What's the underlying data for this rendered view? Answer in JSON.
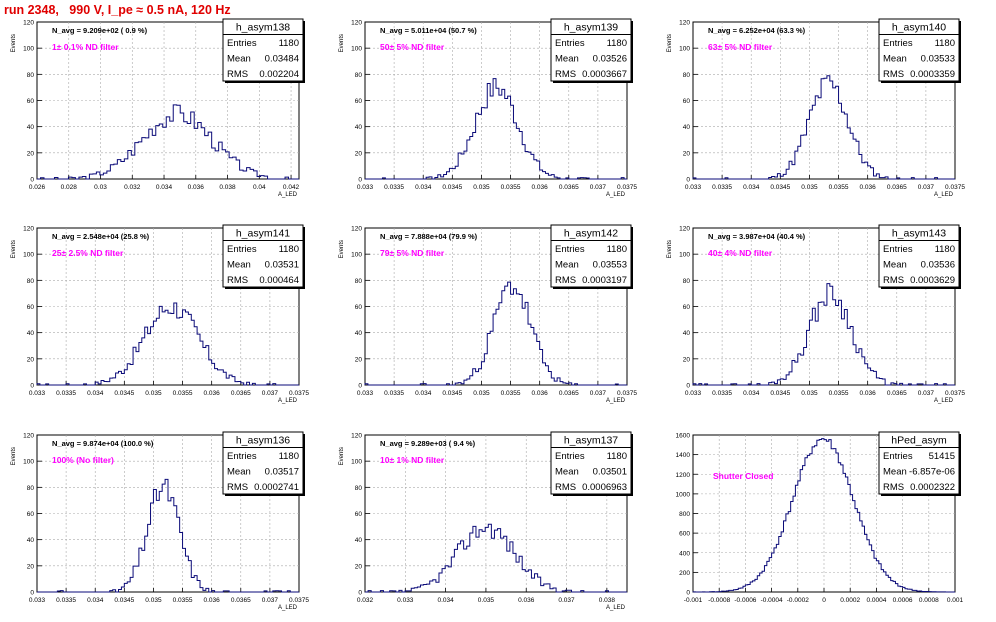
{
  "page": {
    "title": "run 2348,   990 V, I_pe ≈ 0.5 nA, 120 Hz"
  },
  "colors": {
    "hist": "#0a0a78",
    "annotation": "#ff00ff",
    "title": "#e00000",
    "grid": "#aaaaaa"
  },
  "chart_data": [
    {
      "type": "bar",
      "stats_title": "h_asym138",
      "stats": [
        [
          "Entries",
          "1180"
        ],
        [
          "Mean",
          "0.03484"
        ],
        [
          "RMS",
          "0.002204"
        ]
      ],
      "navg": "N_avg = 9.209e+02 ( 0.9 %)",
      "note": "1± 0.1% ND filter",
      "ylabel": "Events",
      "xlabel": "A_LED",
      "xlim": [
        0.026,
        0.0425
      ],
      "ylim": [
        0,
        120
      ],
      "xticks": [
        0.026,
        0.028,
        0.03,
        0.032,
        0.034,
        0.036,
        0.038,
        0.04,
        0.042
      ],
      "xticklabels": [
        "0.026",
        "0.028",
        "0.03",
        "0.032",
        "0.034",
        "0.036",
        "0.038",
        "0.04",
        "0.042"
      ],
      "yticks": [
        0,
        20,
        40,
        60,
        80,
        100,
        120
      ],
      "mean": 0.03484,
      "sigma": 0.0022,
      "peak": 50,
      "bins": 75,
      "seed": 3
    },
    {
      "type": "bar",
      "stats_title": "h_asym139",
      "stats": [
        [
          "Entries",
          "1180"
        ],
        [
          "Mean",
          "0.03526"
        ],
        [
          "RMS",
          "0.0003667"
        ]
      ],
      "navg": "N_avg = 5.011e+04 (50.7 %)",
      "note": "50± 5% ND filter",
      "ylabel": "Events",
      "xlabel": "A_LED",
      "xlim": [
        0.033,
        0.0375
      ],
      "ylim": [
        0,
        120
      ],
      "xticks": [
        0.033,
        0.0335,
        0.034,
        0.0345,
        0.035,
        0.0355,
        0.036,
        0.0365,
        0.037,
        0.0375
      ],
      "xticklabels": [
        "0.033",
        "0.0335",
        "0.034",
        "0.0345",
        "0.035",
        "0.0355",
        "0.036",
        "0.0365",
        "0.037",
        "0.0375"
      ],
      "yticks": [
        0,
        20,
        40,
        60,
        80,
        100,
        120
      ],
      "mean": 0.03526,
      "sigma": 0.000367,
      "peak": 70,
      "bins": 90,
      "seed": 7
    },
    {
      "type": "bar",
      "stats_title": "h_asym140",
      "stats": [
        [
          "Entries",
          "1180"
        ],
        [
          "Mean",
          "0.03533"
        ],
        [
          "RMS",
          "0.0003359"
        ]
      ],
      "navg": "N_avg = 6.252e+04 (63.3 %)",
      "note": "63± 5% ND filter",
      "ylabel": "Events",
      "xlabel": "A_LED",
      "xlim": [
        0.033,
        0.0375
      ],
      "ylim": [
        0,
        120
      ],
      "xticks": [
        0.033,
        0.0335,
        0.034,
        0.0345,
        0.035,
        0.0355,
        0.036,
        0.0365,
        0.037,
        0.0375
      ],
      "xticklabels": [
        "0.033",
        "0.0335",
        "0.034",
        "0.0345",
        "0.035",
        "0.0355",
        "0.036",
        "0.0365",
        "0.037",
        "0.0375"
      ],
      "yticks": [
        0,
        20,
        40,
        60,
        80,
        100,
        120
      ],
      "mean": 0.03533,
      "sigma": 0.000336,
      "peak": 73,
      "bins": 90,
      "seed": 11
    },
    {
      "type": "bar",
      "stats_title": "h_asym141",
      "stats": [
        [
          "Entries",
          "1180"
        ],
        [
          "Mean",
          "0.03531"
        ],
        [
          "RMS",
          "0.000464"
        ]
      ],
      "navg": "N_avg = 2.548e+04 (25.8 %)",
      "note": "25± 2.5% ND filter",
      "ylabel": "Events",
      "xlabel": "A_LED",
      "xlim": [
        0.033,
        0.0375
      ],
      "ylim": [
        0,
        120
      ],
      "xticks": [
        0.033,
        0.0335,
        0.034,
        0.0345,
        0.035,
        0.0355,
        0.036,
        0.0365,
        0.037,
        0.0375
      ],
      "xticklabels": [
        "0.033",
        "0.0335",
        "0.034",
        "0.0345",
        "0.035",
        "0.0355",
        "0.036",
        "0.0365",
        "0.037",
        "0.0375"
      ],
      "yticks": [
        0,
        20,
        40,
        60,
        80,
        100,
        120
      ],
      "mean": 0.03531,
      "sigma": 0.000464,
      "peak": 60,
      "bins": 90,
      "seed": 17
    },
    {
      "type": "bar",
      "stats_title": "h_asym142",
      "stats": [
        [
          "Entries",
          "1180"
        ],
        [
          "Mean",
          "0.03553"
        ],
        [
          "RMS",
          "0.0003197"
        ]
      ],
      "navg": "N_avg = 7.888e+04 (79.9 %)",
      "note": "79± 5% ND filter",
      "ylabel": "Events",
      "xlabel": "A_LED",
      "xlim": [
        0.033,
        0.0375
      ],
      "ylim": [
        0,
        120
      ],
      "xticks": [
        0.033,
        0.0335,
        0.034,
        0.0345,
        0.035,
        0.0355,
        0.036,
        0.0365,
        0.037,
        0.0375
      ],
      "xticklabels": [
        "0.033",
        "0.0335",
        "0.034",
        "0.0345",
        "0.035",
        "0.0355",
        "0.036",
        "0.0365",
        "0.037",
        "0.0375"
      ],
      "yticks": [
        0,
        20,
        40,
        60,
        80,
        100,
        120
      ],
      "mean": 0.03553,
      "sigma": 0.00032,
      "peak": 76,
      "bins": 90,
      "seed": 23
    },
    {
      "type": "bar",
      "stats_title": "h_asym143",
      "stats": [
        [
          "Entries",
          "1180"
        ],
        [
          "Mean",
          "0.03536"
        ],
        [
          "RMS",
          "0.0003629"
        ]
      ],
      "navg": "N_avg = 3.987e+04 (40.4 %)",
      "note": "40± 4% ND filter",
      "ylabel": "Events",
      "xlabel": "A_LED",
      "xlim": [
        0.033,
        0.0375
      ],
      "ylim": [
        0,
        120
      ],
      "xticks": [
        0.033,
        0.0335,
        0.034,
        0.0345,
        0.035,
        0.0355,
        0.036,
        0.0365,
        0.037,
        0.0375
      ],
      "xticklabels": [
        "0.033",
        "0.0335",
        "0.034",
        "0.0345",
        "0.035",
        "0.0355",
        "0.036",
        "0.0365",
        "0.037",
        "0.0375"
      ],
      "yticks": [
        0,
        20,
        40,
        60,
        80,
        100,
        120
      ],
      "mean": 0.03536,
      "sigma": 0.000363,
      "peak": 70,
      "bins": 90,
      "seed": 29
    },
    {
      "type": "bar",
      "stats_title": "h_asym136",
      "stats": [
        [
          "Entries",
          "1180"
        ],
        [
          "Mean",
          "0.03517"
        ],
        [
          "RMS",
          "0.0002741"
        ]
      ],
      "navg": "N_avg = 9.874e+04 (100.0 %)",
      "note": "100% (No filter)",
      "ylabel": "Events",
      "xlabel": "A_LED",
      "xlim": [
        0.033,
        0.0375
      ],
      "ylim": [
        0,
        120
      ],
      "xticks": [
        0.033,
        0.0335,
        0.034,
        0.0345,
        0.035,
        0.0355,
        0.036,
        0.0365,
        0.037,
        0.0375
      ],
      "xticklabels": [
        "0.033",
        "0.0335",
        "0.034",
        "0.0345",
        "0.035",
        "0.0355",
        "0.036",
        "0.0365",
        "0.037",
        "0.0375"
      ],
      "yticks": [
        0,
        20,
        40,
        60,
        80,
        100,
        120
      ],
      "mean": 0.03517,
      "sigma": 0.000274,
      "peak": 80,
      "bins": 90,
      "seed": 31
    },
    {
      "type": "bar",
      "stats_title": "h_asym137",
      "stats": [
        [
          "Entries",
          "1180"
        ],
        [
          "Mean",
          "0.03501"
        ],
        [
          "RMS",
          "0.0006963"
        ]
      ],
      "navg": "N_avg = 9.289e+03 ( 9.4 %)",
      "note": "10± 1% ND filter",
      "ylabel": "Events",
      "xlabel": "A_LED",
      "xlim": [
        0.032,
        0.0385
      ],
      "ylim": [
        0,
        120
      ],
      "xticks": [
        0.032,
        0.033,
        0.034,
        0.035,
        0.036,
        0.037,
        0.038
      ],
      "xticklabels": [
        "0.032",
        "0.033",
        "0.034",
        "0.035",
        "0.036",
        "0.037",
        "0.038"
      ],
      "yticks": [
        0,
        20,
        40,
        60,
        80,
        100,
        120
      ],
      "mean": 0.03501,
      "sigma": 0.000696,
      "peak": 50,
      "bins": 85,
      "seed": 37
    },
    {
      "type": "bar",
      "stats_title": "hPed_asym",
      "stats": [
        [
          "Entries",
          "51415"
        ],
        [
          "Mean",
          "-6.857e-06"
        ],
        [
          "RMS",
          "0.0002322"
        ]
      ],
      "navg": "",
      "note": "Shutter Closed",
      "ylabel": "",
      "xlabel": "",
      "xlim": [
        -0.001,
        0.001
      ],
      "ylim": [
        0,
        1600
      ],
      "xticks": [
        -0.001,
        -0.0008,
        -0.0006,
        -0.0004,
        -0.0002,
        0,
        0.0002,
        0.0004,
        0.0006,
        0.0008,
        0.001
      ],
      "xticklabels": [
        "-0.001",
        "-0.0008",
        "-0.0006",
        "-0.0004",
        "-0.0002",
        "0",
        "0.0002",
        "0.0004",
        "0.0006",
        "0.0008",
        "0.001"
      ],
      "yticks": [
        0,
        200,
        400,
        600,
        800,
        1000,
        1200,
        1400,
        1600
      ],
      "mean": -7e-06,
      "sigma": 0.000232,
      "peak": 1560,
      "bins": 110,
      "seed": 41
    }
  ]
}
